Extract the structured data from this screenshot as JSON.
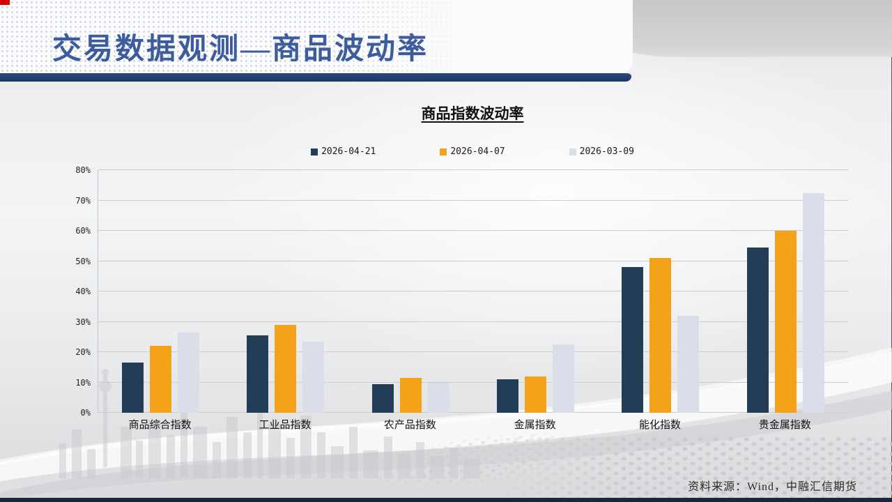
{
  "slide": {
    "title": "交易数据观测—商品波动率",
    "source_note": "资料来源：Wind，中融汇信期货"
  },
  "colors": {
    "title_blue": "#3D5C9E",
    "header_band": "#1E3A68",
    "footer_bar": "#14283F",
    "corner_mark_red": "#D80000",
    "gridline": "#C9CBCF"
  },
  "chart_data": {
    "type": "bar",
    "title": "商品指数波动率",
    "categories": [
      "商品综合指数",
      "工业品指数",
      "农产品指数",
      "金属指数",
      "能化指数",
      "贵金属指数"
    ],
    "series": [
      {
        "name": "2026-04-21",
        "color": "#243D56",
        "values": [
          16.5,
          25.5,
          9.5,
          11,
          48,
          54.5
        ]
      },
      {
        "name": "2026-04-07",
        "color": "#F5A21B",
        "values": [
          22,
          29,
          11.5,
          12,
          51,
          60
        ]
      },
      {
        "name": "2026-03-09",
        "color": "#D9DEE8",
        "values": [
          26.5,
          23.5,
          10,
          22.5,
          32,
          72.5
        ]
      }
    ],
    "xlabel": "",
    "ylabel": "",
    "ylim": [
      0,
      80
    ],
    "ytick_step": 10,
    "ytick_suffix": "%",
    "grid": true,
    "legend_position": "top"
  }
}
